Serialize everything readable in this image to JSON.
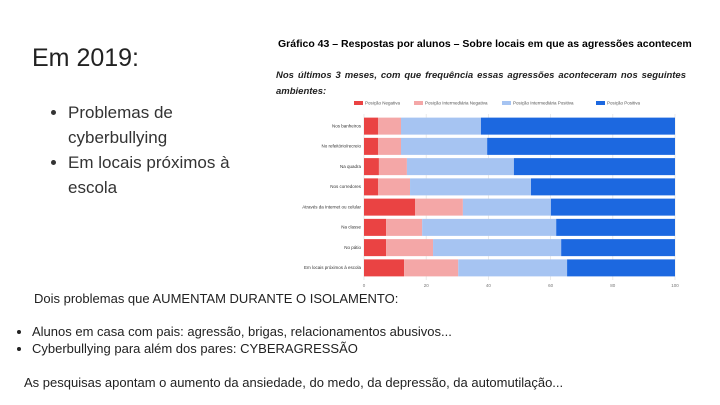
{
  "title": "Em 2019:",
  "bullets": [
    "Problemas de cyberbullying",
    "Em locais próximos à escola"
  ],
  "chart_data": {
    "type": "stacked-barh",
    "title": "Gráfico 43 – Respostas por alunos – Sobre locais em que as agressões acontecem",
    "subtitle": "Nos últimos 3 meses, com que frequência essas agressões aconteceram nos seguintes ambientes:",
    "categories": [
      "Nos banheiros",
      "No refeitório/recreio",
      "Na quadra",
      "Nos corredores",
      "Através da Internet ou celular",
      "Na classe",
      "No pátio",
      "Em locais próximos à escola"
    ],
    "series": [
      {
        "name": "Posição Negativa",
        "color": "#ea4343",
        "values": [
          4.5,
          4.5,
          4.8,
          4.5,
          16.4,
          7.1,
          7.1,
          12.9
        ]
      },
      {
        "name": "Posição Intermediária Negativa",
        "color": "#f4a7a7",
        "values": [
          7.4,
          7.4,
          9.0,
          10.3,
          15.4,
          11.6,
          15.1,
          17.4
        ]
      },
      {
        "name": "Posição Intermediária Positiva",
        "color": "#a6c4f2",
        "values": [
          25.7,
          27.7,
          34.4,
          38.9,
          28.3,
          43.1,
          41.2,
          35.0
        ]
      },
      {
        "name": "Posição Positiva",
        "color": "#1c68e0",
        "values": [
          62.4,
          60.4,
          51.8,
          46.3,
          39.9,
          38.2,
          36.6,
          34.7
        ]
      }
    ],
    "xlim": [
      0,
      100
    ],
    "xticks": [
      0,
      20,
      40,
      60,
      80,
      100
    ],
    "grid": true,
    "legend": "top"
  },
  "intro": "Dois problemas que AUMENTAM DURANTE O ISOLAMENTO:",
  "points": [
    "Alunos em casa com pais: agressão, brigas, relacionamentos abusivos...",
    "Cyberbullying para além dos pares: CYBERAGRESSÃO"
  ],
  "closing": "As pesquisas apontam o aumento da ansiedade, do medo, da depressão, da automutilação..."
}
